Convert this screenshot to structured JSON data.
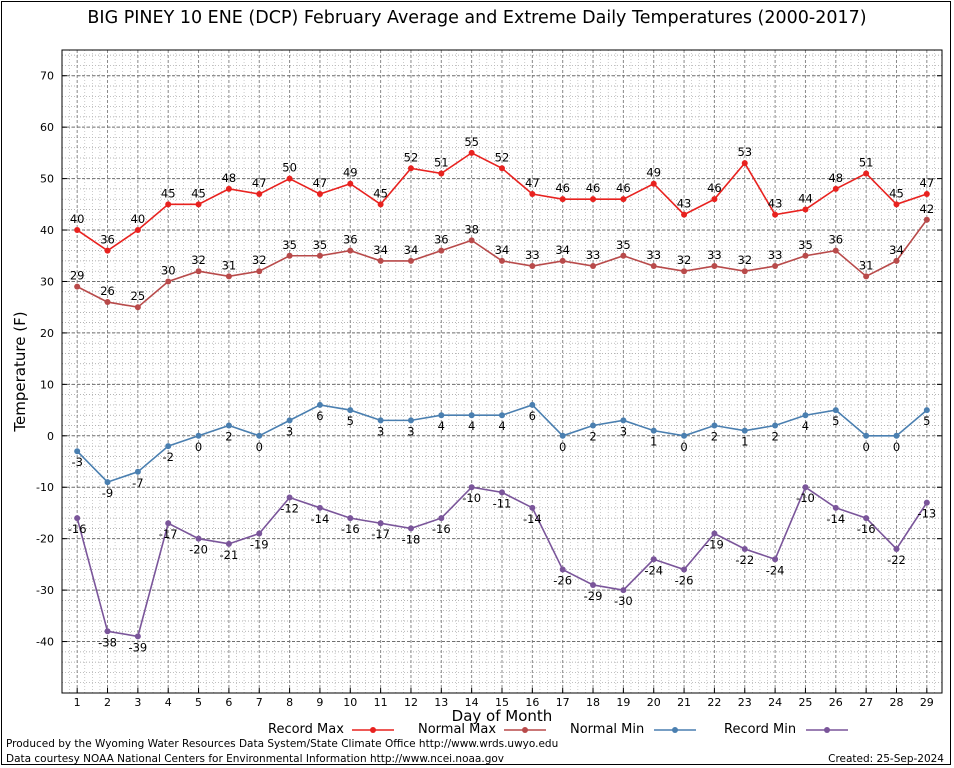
{
  "title": "BIG PINEY 10 ENE (DCP) February Average and Extreme Daily Temperatures (2000-2017)",
  "footer": {
    "produced_by": "Produced by the Wyoming Water Resources Data System/State Climate Office http://www.wrds.uwyo.edu",
    "courtesy": "Data courtesy NOAA National Centers for Environmental Information http://www.ncei.noaa.gov",
    "created": "Created:  25-Sep-2024"
  },
  "chart_data": {
    "type": "line",
    "title": "BIG PINEY 10 ENE (DCP) February Average and Extreme Daily Temperatures (2000-2017)",
    "xlabel": "Day of Month",
    "ylabel": "Temperature (F)",
    "xlim": [
      0.5,
      29.5
    ],
    "ylim": [
      -50,
      75
    ],
    "yticks": [
      -40,
      -30,
      -20,
      -10,
      0,
      10,
      20,
      30,
      40,
      50,
      60,
      70
    ],
    "grid": true,
    "legend_placement": "bottom",
    "x": [
      1,
      2,
      3,
      4,
      5,
      6,
      7,
      8,
      9,
      10,
      11,
      12,
      13,
      14,
      15,
      16,
      17,
      18,
      19,
      20,
      21,
      22,
      23,
      24,
      25,
      26,
      27,
      28,
      29
    ],
    "series": [
      {
        "name": "Record Max",
        "color": "#e8221f",
        "values": [
          40,
          36,
          40,
          45,
          45,
          48,
          47,
          50,
          47,
          49,
          45,
          52,
          51,
          55,
          52,
          47,
          46,
          46,
          46,
          49,
          43,
          46,
          53,
          43,
          44,
          48,
          51,
          45,
          47
        ]
      },
      {
        "name": "Normal Max",
        "color": "#b84a4a",
        "values": [
          29,
          26,
          25,
          30,
          32,
          31,
          32,
          35,
          35,
          36,
          34,
          34,
          36,
          38,
          34,
          33,
          34,
          33,
          35,
          33,
          32,
          33,
          32,
          33,
          35,
          36,
          31,
          34,
          42
        ]
      },
      {
        "name": "Normal Min",
        "color": "#4a7fb0",
        "values": [
          -3,
          -9,
          -7,
          -2,
          0,
          2,
          0,
          3,
          6,
          5,
          3,
          3,
          4,
          4,
          4,
          6,
          0,
          2,
          3,
          1,
          0,
          2,
          1,
          2,
          4,
          5,
          0,
          0,
          5
        ]
      },
      {
        "name": "Record Min",
        "color": "#7a559a",
        "values": [
          -16,
          -38,
          -39,
          -17,
          -20,
          -21,
          -19,
          -12,
          -14,
          -16,
          -17,
          -18,
          -16,
          -10,
          -11,
          -14,
          -26,
          -29,
          -30,
          -24,
          -26,
          -19,
          -22,
          -24,
          -10,
          -14,
          -16,
          -22,
          -13
        ]
      }
    ]
  }
}
